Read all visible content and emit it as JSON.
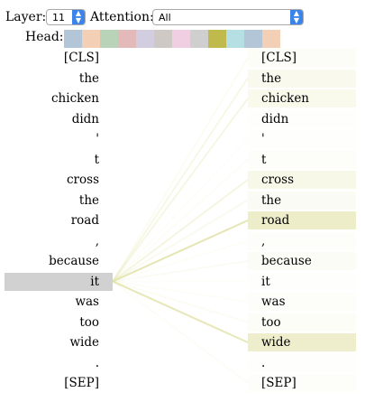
{
  "controls": {
    "layer_label": "Layer:",
    "layer_value": "11",
    "attention_label": "Attention:",
    "attention_value": "All",
    "head_label": "Head:"
  },
  "heads": [
    {
      "color": "#b3c6d8"
    },
    {
      "color": "#f2cfb5"
    },
    {
      "color": "#b8d3b8"
    },
    {
      "color": "#e3b9b9"
    },
    {
      "color": "#d3cde0"
    },
    {
      "color": "#cfc9c6"
    },
    {
      "color": "#f1cfe3"
    },
    {
      "color": "#cfcfcf"
    },
    {
      "color": "#c0ba4c"
    },
    {
      "color": "#b5dfe3"
    },
    {
      "color": "#b3c6d8"
    },
    {
      "color": "#f2cfb5"
    }
  ],
  "tokens": [
    "[CLS]",
    "the",
    "chicken",
    "didn",
    "'",
    "t",
    "cross",
    "the",
    "road",
    ",",
    "because",
    "it",
    "was",
    "too",
    "wide",
    ".",
    "[SEP]"
  ],
  "selected_index": 11,
  "attention_color": "#e2e2a9",
  "attention": [
    0.08,
    0.2,
    0.22,
    0.02,
    0.04,
    0.06,
    0.25,
    0.12,
    0.62,
    0.06,
    0.1,
    0.04,
    0.06,
    0.08,
    0.58,
    0.02,
    0.06
  ]
}
